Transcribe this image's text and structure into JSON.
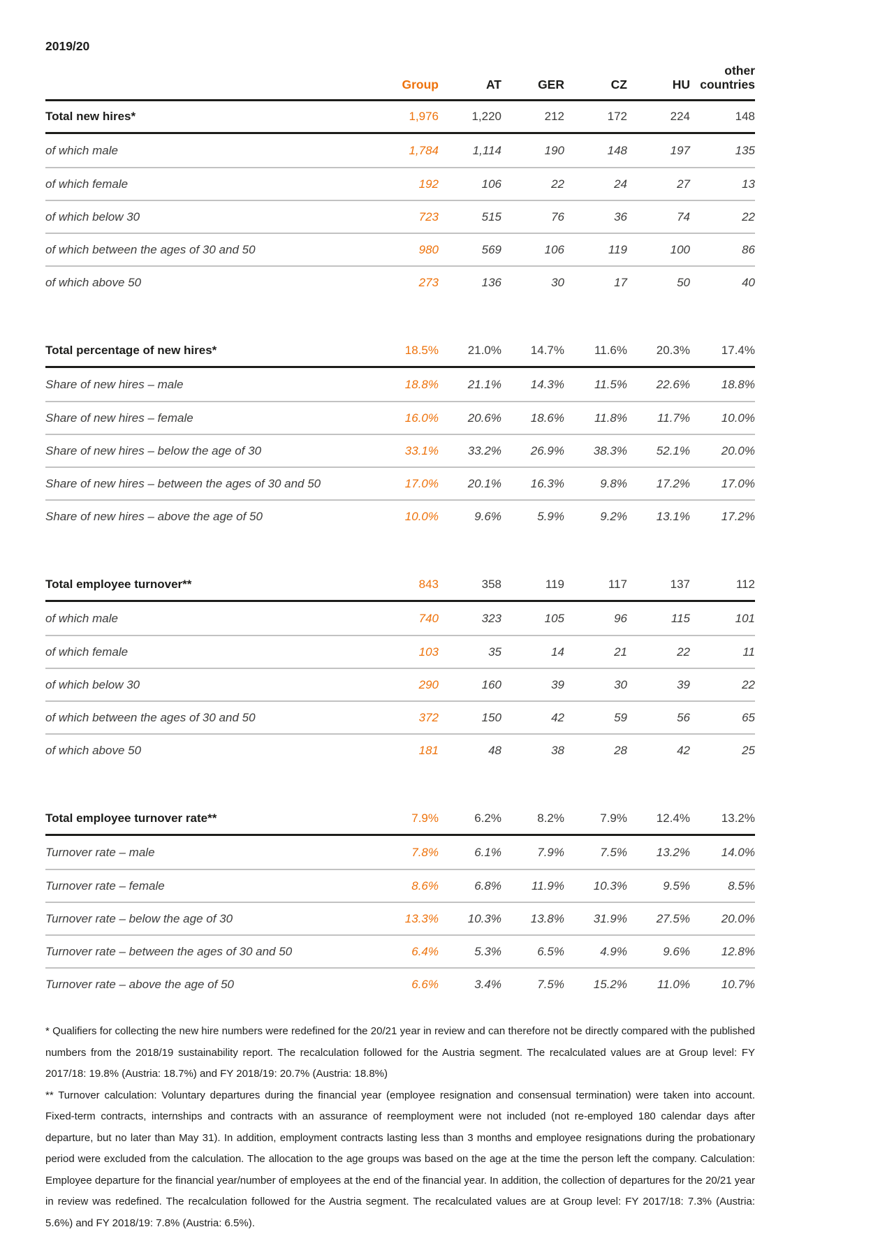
{
  "page": {
    "period": "2019/20",
    "accent_color": "#ee720b"
  },
  "table": {
    "columns": [
      "Group",
      "AT",
      "GER",
      "CZ",
      "HU",
      "other countries"
    ],
    "sections": [
      {
        "header": {
          "label": "Total new hires*",
          "values": [
            "1,976",
            "1,220",
            "212",
            "172",
            "224",
            "148"
          ]
        },
        "rows": [
          {
            "label": "of which male",
            "values": [
              "1,784",
              "1,114",
              "190",
              "148",
              "197",
              "135"
            ]
          },
          {
            "label": "of which female",
            "values": [
              "192",
              "106",
              "22",
              "24",
              "27",
              "13"
            ]
          },
          {
            "label": "of which below 30",
            "values": [
              "723",
              "515",
              "76",
              "36",
              "74",
              "22"
            ]
          },
          {
            "label": "of which between the ages of 30 and 50",
            "values": [
              "980",
              "569",
              "106",
              "119",
              "100",
              "86"
            ]
          },
          {
            "label": "of which above 50",
            "values": [
              "273",
              "136",
              "30",
              "17",
              "50",
              "40"
            ]
          }
        ]
      },
      {
        "header": {
          "label": "Total percentage of new hires*",
          "values": [
            "18.5%",
            "21.0%",
            "14.7%",
            "11.6%",
            "20.3%",
            "17.4%"
          ]
        },
        "rows": [
          {
            "label": "Share of new hires – male",
            "values": [
              "18.8%",
              "21.1%",
              "14.3%",
              "11.5%",
              "22.6%",
              "18.8%"
            ]
          },
          {
            "label": "Share of new hires – female",
            "values": [
              "16.0%",
              "20.6%",
              "18.6%",
              "11.8%",
              "11.7%",
              "10.0%"
            ]
          },
          {
            "label": "Share of new hires – below the age of 30",
            "values": [
              "33.1%",
              "33.2%",
              "26.9%",
              "38.3%",
              "52.1%",
              "20.0%"
            ]
          },
          {
            "label": "Share of new hires – between the ages of 30 and 50",
            "values": [
              "17.0%",
              "20.1%",
              "16.3%",
              "9.8%",
              "17.2%",
              "17.0%"
            ]
          },
          {
            "label": "Share of new hires – above the age of 50",
            "values": [
              "10.0%",
              "9.6%",
              "5.9%",
              "9.2%",
              "13.1%",
              "17.2%"
            ]
          }
        ]
      },
      {
        "header": {
          "label": "Total employee turnover**",
          "values": [
            "843",
            "358",
            "119",
            "117",
            "137",
            "112"
          ]
        },
        "rows": [
          {
            "label": "of which male",
            "values": [
              "740",
              "323",
              "105",
              "96",
              "115",
              "101"
            ]
          },
          {
            "label": "of which female",
            "values": [
              "103",
              "35",
              "14",
              "21",
              "22",
              "11"
            ]
          },
          {
            "label": "of which below 30",
            "values": [
              "290",
              "160",
              "39",
              "30",
              "39",
              "22"
            ]
          },
          {
            "label": "of which between the ages of 30 and 50",
            "values": [
              "372",
              "150",
              "42",
              "59",
              "56",
              "65"
            ]
          },
          {
            "label": "of which above 50",
            "values": [
              "181",
              "48",
              "38",
              "28",
              "42",
              "25"
            ]
          }
        ]
      },
      {
        "header": {
          "label": "Total employee turnover rate**",
          "values": [
            "7.9%",
            "6.2%",
            "8.2%",
            "7.9%",
            "12.4%",
            "13.2%"
          ]
        },
        "rows": [
          {
            "label": "Turnover rate – male",
            "values": [
              "7.8%",
              "6.1%",
              "7.9%",
              "7.5%",
              "13.2%",
              "14.0%"
            ]
          },
          {
            "label": "Turnover rate – female",
            "values": [
              "8.6%",
              "6.8%",
              "11.9%",
              "10.3%",
              "9.5%",
              "8.5%"
            ]
          },
          {
            "label": "Turnover rate – below the age of 30",
            "values": [
              "13.3%",
              "10.3%",
              "13.8%",
              "31.9%",
              "27.5%",
              "20.0%"
            ]
          },
          {
            "label": "Turnover rate – between the ages of 30 and 50",
            "values": [
              "6.4%",
              "5.3%",
              "6.5%",
              "4.9%",
              "9.6%",
              "12.8%"
            ]
          },
          {
            "label": "Turnover rate – above the age of 50",
            "values": [
              "6.6%",
              "3.4%",
              "7.5%",
              "15.2%",
              "11.0%",
              "10.7%"
            ]
          }
        ]
      }
    ]
  },
  "footnotes": [
    "* Qualifiers for collecting the new hire numbers were redefined for the 20/21 year in review and can therefore not be directly compared with the published numbers from the 2018/19 sustainability report. The recalculation followed for the Austria segment. The recalculated values are at Group level: FY 2017/18: 19.8% (Austria: 18.7%) and FY 2018/19: 20.7% (Austria: 18.8%)",
    "** Turnover calculation: Voluntary departures during the financial year (employee resignation and consensual termination) were taken into account. Fixed-term contracts, internships and contracts with an assurance of reemployment were not included (not re-employed 180 calendar days after departure, but no later than May 31). In addition, employment contracts lasting less than 3 months and employee resignations during the probationary period were excluded from the calculation. The allocation to the age groups was based on the age at the time the person left the company. Calculation: Employee departure for the financial year/number of employees at the end of the financial year. In addition, the collection of departures for the 20/21 year in review was redefined. The recalculation followed for the Austria segment. The recalculated values are at Group level: FY 2017/18: 7.3% (Austria: 5.6%) and FY 2018/19: 7.8% (Austria: 6.5%)."
  ]
}
